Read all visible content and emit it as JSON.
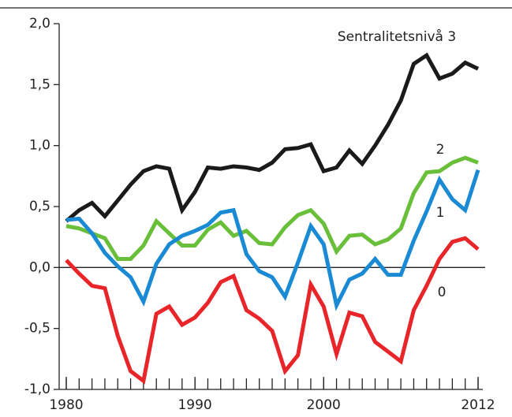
{
  "chart_data": {
    "type": "line",
    "x": [
      1980,
      1981,
      1982,
      1983,
      1984,
      1985,
      1986,
      1987,
      1988,
      1989,
      1990,
      1991,
      1992,
      1993,
      1994,
      1995,
      1996,
      1997,
      1998,
      1999,
      2000,
      2001,
      2002,
      2003,
      2004,
      2005,
      2006,
      2007,
      2008,
      2009,
      2010,
      2011,
      2012
    ],
    "xlim": [
      1980,
      2012
    ],
    "xticks": [
      1980,
      1990,
      2000,
      2012
    ],
    "ylim": [
      -1,
      2
    ],
    "yticks": [
      {
        "value": -1,
        "label": "-1,0"
      },
      {
        "value": -0.5,
        "label": "-0,5"
      },
      {
        "value": 0,
        "label": "0,0"
      },
      {
        "value": 0.5,
        "label": "0,5"
      },
      {
        "value": 1,
        "label": "1,0"
      },
      {
        "value": 1.5,
        "label": "1,5"
      },
      {
        "value": 2,
        "label": "2,0"
      }
    ],
    "series": [
      {
        "name": "Sentralitetsnivå 3",
        "color": "#1a1a1a",
        "values": [
          0.38,
          0.47,
          0.53,
          0.42,
          0.55,
          0.68,
          0.79,
          0.83,
          0.81,
          0.47,
          0.62,
          0.82,
          0.81,
          0.83,
          0.82,
          0.8,
          0.86,
          0.97,
          0.98,
          1.01,
          0.79,
          0.82,
          0.96,
          0.85,
          1.0,
          1.17,
          1.37,
          1.67,
          1.74,
          1.55,
          1.59,
          1.68,
          1.63
        ]
      },
      {
        "name": "2",
        "color": "#6abf3a",
        "values": [
          0.34,
          0.32,
          0.28,
          0.24,
          0.07,
          0.07,
          0.18,
          0.38,
          0.28,
          0.18,
          0.18,
          0.31,
          0.37,
          0.26,
          0.3,
          0.2,
          0.19,
          0.33,
          0.43,
          0.47,
          0.36,
          0.13,
          0.26,
          0.27,
          0.19,
          0.23,
          0.32,
          0.61,
          0.78,
          0.79,
          0.86,
          0.9,
          0.86
        ]
      },
      {
        "name": "1",
        "color": "#1a8ad4",
        "values": [
          0.39,
          0.4,
          0.28,
          0.12,
          0.01,
          -0.08,
          -0.28,
          0.03,
          0.19,
          0.26,
          0.3,
          0.35,
          0.45,
          0.47,
          0.11,
          -0.03,
          -0.08,
          -0.24,
          0.04,
          0.34,
          0.19,
          -0.31,
          -0.1,
          -0.05,
          0.07,
          -0.06,
          -0.06,
          0.22,
          0.46,
          0.72,
          0.56,
          0.47,
          0.8
        ]
      },
      {
        "name": "0",
        "color": "#e8262a",
        "values": [
          0.06,
          -0.05,
          -0.15,
          -0.17,
          -0.56,
          -0.85,
          -0.93,
          -0.38,
          -0.32,
          -0.47,
          -0.41,
          -0.29,
          -0.12,
          -0.07,
          -0.35,
          -0.42,
          -0.52,
          -0.85,
          -0.72,
          -0.14,
          -0.32,
          -0.71,
          -0.37,
          -0.4,
          -0.61,
          -0.69,
          -0.77,
          -0.35,
          -0.15,
          0.07,
          0.21,
          0.24,
          0.15
        ]
      }
    ]
  }
}
